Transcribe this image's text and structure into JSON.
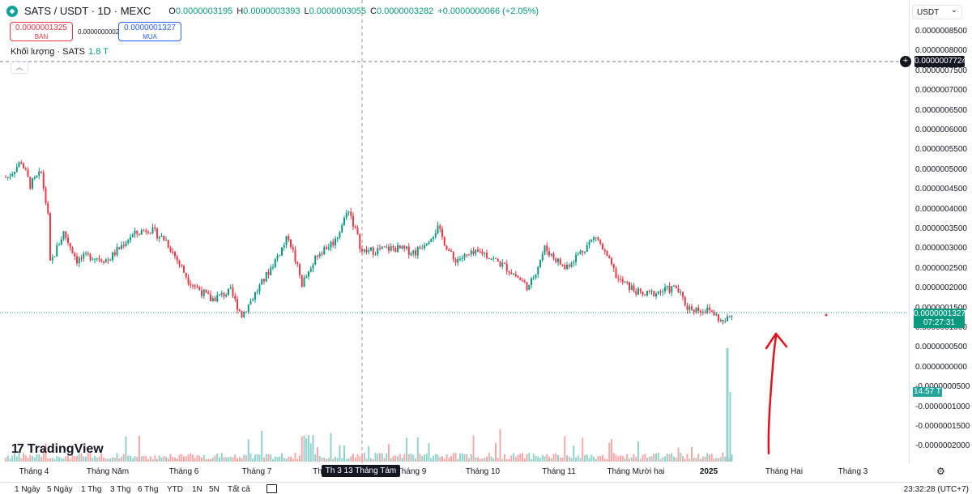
{
  "symbol": {
    "title": "SATS / USDT · 1D · MEXC",
    "ohlc": [
      {
        "k": "O",
        "v": "0.0000003195"
      },
      {
        "k": "H",
        "v": "0.0000003393"
      },
      {
        "k": "L",
        "v": "0.0000003055"
      },
      {
        "k": "C",
        "v": "0.0000003282"
      },
      {
        "k": "",
        "v": "+0.0000000066 (+2.05%)"
      }
    ]
  },
  "trade": {
    "sell_price": "0.0000001325",
    "sell_label": "BÁN",
    "spread": "0.0000000002",
    "buy_price": "0.0000001327",
    "buy_label": "MUA"
  },
  "volume": {
    "label": "Khối lượng · SATS",
    "value": "1.8 T"
  },
  "logo": "TradingView",
  "currency": "USDT",
  "price_axis": [
    "0.0000008500",
    "0.0000008000",
    "0.0000007500",
    "0.0000007000",
    "0.0000006500",
    "0.0000006000",
    "0.0000005500",
    "0.0000005000",
    "0.0000004500",
    "0.0000004000",
    "0.0000003500",
    "0.0000003000",
    "0.0000002500",
    "0.0000002000",
    "0.0000001500",
    "0.0000001000",
    "0.0000000500",
    "0.0000000000",
    "-0.0000000500",
    "-0.0000001000",
    "-0.0000001500",
    "-0.0000002000"
  ],
  "horizontal_line_value": "0.0000007724",
  "last_price": "0.0000001327",
  "countdown": "07:27:31",
  "volume_value": "14.57 T",
  "time_axis": [
    "Tháng 4",
    "Tháng Năm",
    "Tháng 6",
    "Tháng 7",
    "Th",
    "Tháng 9",
    "Tháng 10",
    "Tháng 11",
    "Tháng Mười hai",
    "2025",
    "Tháng Hai",
    "Tháng 3"
  ],
  "crosshair_date": "Th 3 13 Tháng Tám '24",
  "bottom": {
    "ranges": [
      "1 Ngày",
      "5 Ngày",
      "1 Thg",
      "3 Thg",
      "6 Thg",
      "YTD",
      "1N",
      "5N",
      "Tất cả"
    ],
    "time": "23:32:28 (UTC+7)"
  },
  "colors": {
    "up": "#089981",
    "down": "#f23645",
    "vol_up": "#92d2cc",
    "vol_down": "#f7a9a7",
    "annotation": "#e3131b"
  },
  "chart_data": {
    "type": "candlestick",
    "x_range": [
      "2024-03-25",
      "2025-03-20"
    ],
    "y_range": [
      -2.2e-07,
      8.8e-07
    ],
    "close_path": [
      [
        "2024-03-26",
        4.8e-07
      ],
      [
        "2024-04-01",
        5.2e-07
      ],
      [
        "2024-04-05",
        4.6e-07
      ],
      [
        "2024-04-10",
        4.9e-07
      ],
      [
        "2024-04-13",
        3.8e-07
      ],
      [
        "2024-04-14",
        2.6e-07
      ],
      [
        "2024-04-20",
        3.4e-07
      ],
      [
        "2024-04-26",
        2.7e-07
      ],
      [
        "2024-05-02",
        2.8e-07
      ],
      [
        "2024-05-10",
        2.7e-07
      ],
      [
        "2024-05-20",
        3.3e-07
      ],
      [
        "2024-05-28",
        3.5e-07
      ],
      [
        "2024-06-05",
        3.2e-07
      ],
      [
        "2024-06-15",
        2.2e-07
      ],
      [
        "2024-06-25",
        1.7e-07
      ],
      [
        "2024-07-04",
        1.9e-07
      ],
      [
        "2024-07-09",
        1.3e-07
      ],
      [
        "2024-07-20",
        2.3e-07
      ],
      [
        "2024-07-30",
        3.3e-07
      ],
      [
        "2024-08-05",
        2.1e-07
      ],
      [
        "2024-08-13",
        2.9e-07
      ],
      [
        "2024-08-20",
        3.2e-07
      ],
      [
        "2024-08-26",
        4e-07
      ],
      [
        "2024-09-01",
        2.9e-07
      ],
      [
        "2024-09-15",
        3e-07
      ],
      [
        "2024-09-25",
        2.9e-07
      ],
      [
        "2024-10-05",
        3.5e-07
      ],
      [
        "2024-10-12",
        2.7e-07
      ],
      [
        "2024-10-25",
        2.9e-07
      ],
      [
        "2024-11-05",
        2.5e-07
      ],
      [
        "2024-11-15",
        2e-07
      ],
      [
        "2024-11-22",
        3e-07
      ],
      [
        "2024-12-01",
        2.5e-07
      ],
      [
        "2024-12-15",
        3.3e-07
      ],
      [
        "2024-12-25",
        2.2e-07
      ],
      [
        "2025-01-05",
        1.8e-07
      ],
      [
        "2025-01-20",
        2e-07
      ],
      [
        "2025-01-25",
        1.5e-07
      ],
      [
        "2025-02-05",
        1.4e-07
      ],
      [
        "2025-02-10",
        1.1e-07
      ],
      [
        "2025-02-14",
        1.3e-07
      ]
    ],
    "volume_spike": {
      "date": "2025-02-10",
      "value_T": 14.57
    }
  }
}
